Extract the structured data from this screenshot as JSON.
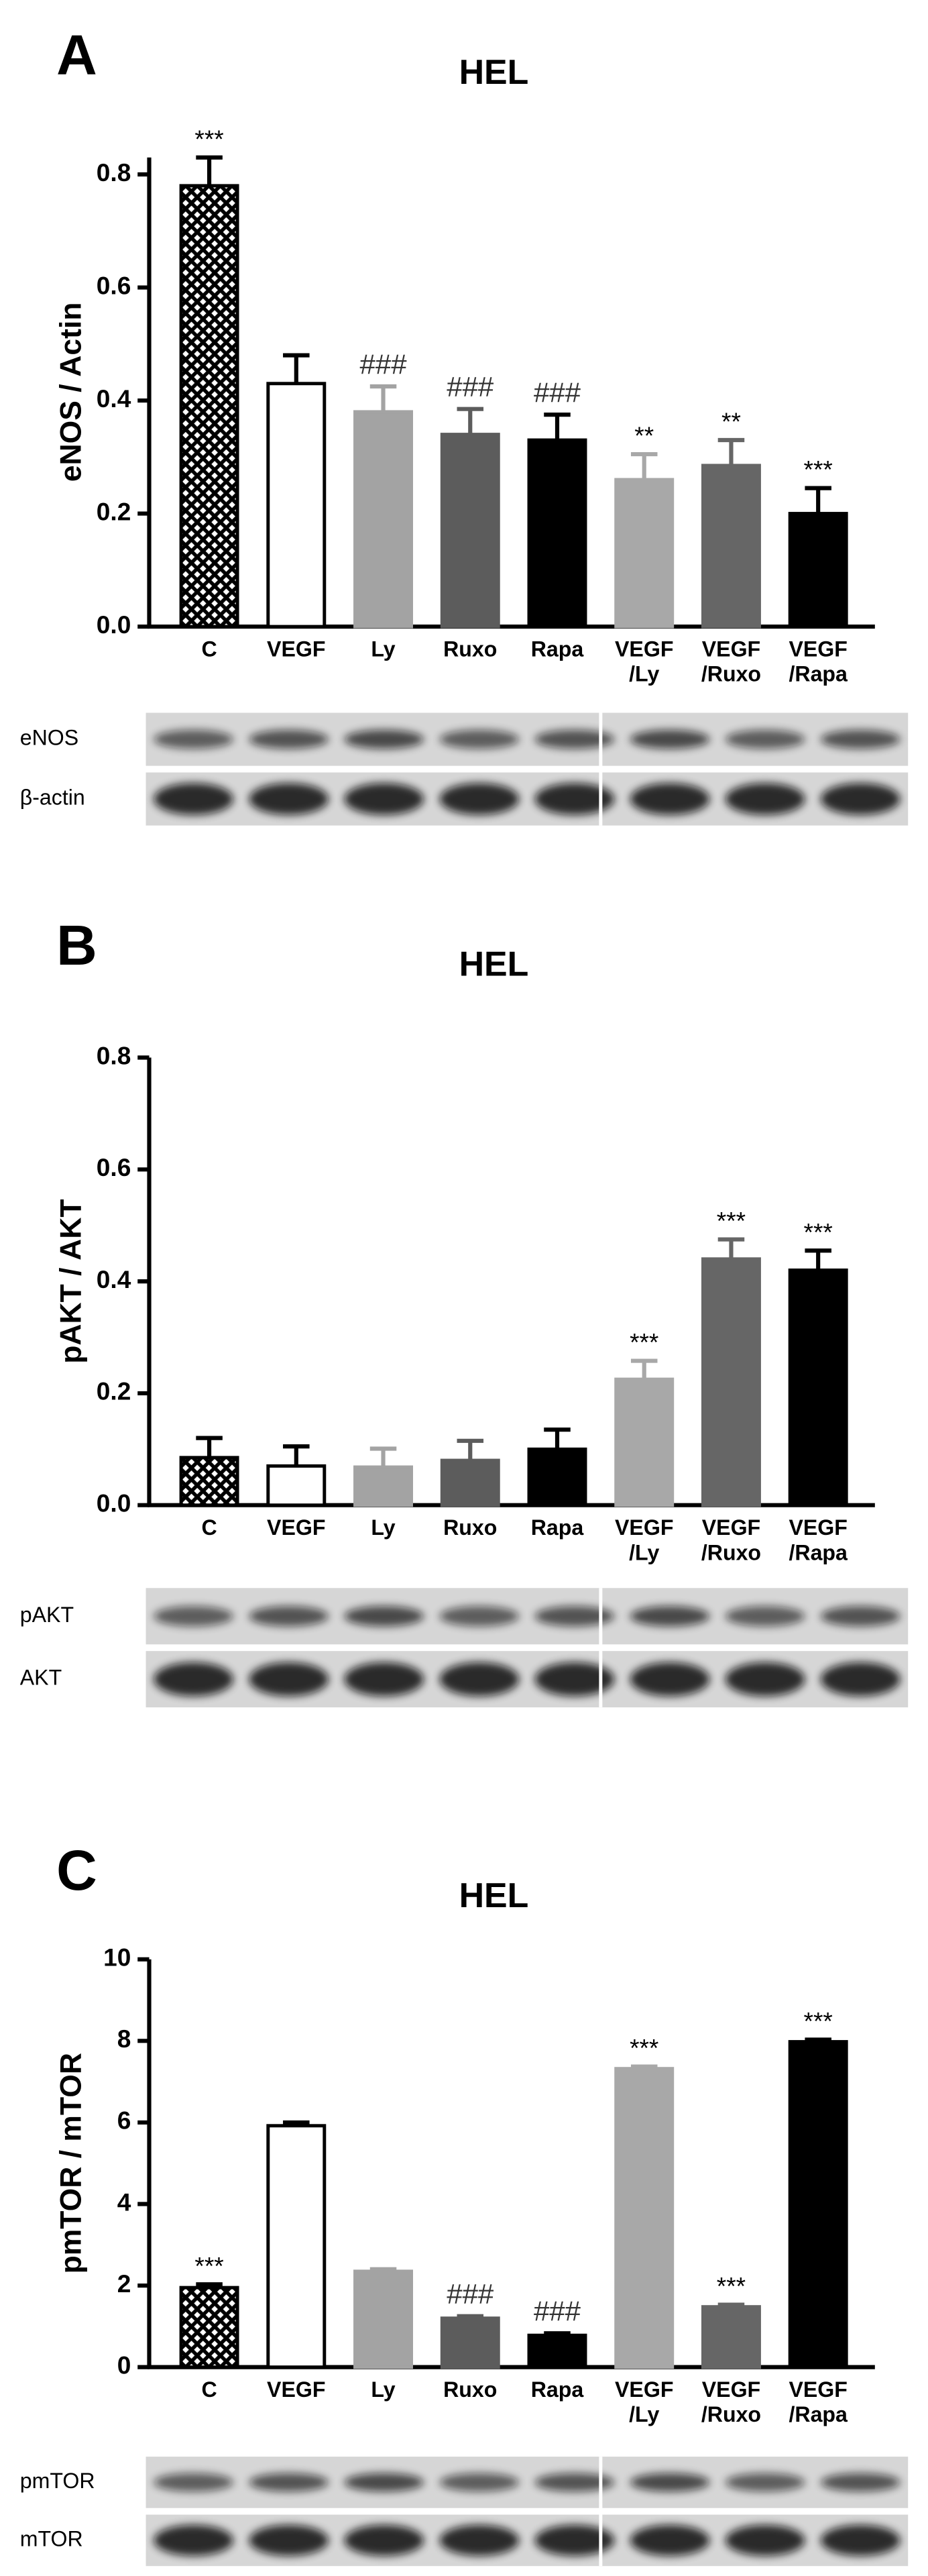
{
  "chart_data": [
    {
      "type": "bar",
      "panel": "A",
      "title": "HEL",
      "ylabel": "eNOS / Actin",
      "categories": [
        "C",
        "VEGF",
        "Ly",
        "Ruxo",
        "Rapa",
        "VEGF\n/Ly",
        "VEGF\n/Ruxo",
        "VEGF\n/Rapa"
      ],
      "values": [
        0.78,
        0.43,
        0.38,
        0.34,
        0.33,
        0.26,
        0.285,
        0.2
      ],
      "errors": [
        0.05,
        0.05,
        0.045,
        0.045,
        0.045,
        0.045,
        0.045,
        0.045
      ],
      "annotations": [
        "***",
        null,
        "###",
        "###",
        "###",
        "**",
        "**",
        "***"
      ],
      "bar_fills": [
        "crosshatch",
        "#ffffff",
        "#a3a3a3",
        "#5c5c5c",
        "#000000",
        "#a8a8a8",
        "#666666",
        "#000000"
      ],
      "ylim": [
        0,
        0.83
      ],
      "yticks": [
        {
          "value": 0,
          "label": "0.0"
        },
        0.2,
        0.4,
        0.6,
        0.8
      ],
      "blot_labels": [
        "eNOS",
        "β-actin"
      ]
    },
    {
      "type": "bar",
      "panel": "B",
      "title": "HEL",
      "ylabel": "pAKT / AKT",
      "categories": [
        "C",
        "VEGF",
        "Ly",
        "Ruxo",
        "Rapa",
        "VEGF\n/Ly",
        "VEGF\n/Ruxo",
        "VEGF\n/Rapa"
      ],
      "values": [
        0.085,
        0.07,
        0.068,
        0.08,
        0.1,
        0.225,
        0.44,
        0.42
      ],
      "errors": [
        0.035,
        0.035,
        0.033,
        0.035,
        0.035,
        0.033,
        0.035,
        0.035
      ],
      "annotations": [
        null,
        null,
        null,
        null,
        null,
        "***",
        "***",
        "***"
      ],
      "bar_fills": [
        "crosshatch",
        "#ffffff",
        "#a3a3a3",
        "#5c5c5c",
        "#000000",
        "#a8a8a8",
        "#666666",
        "#000000"
      ],
      "ylim": [
        0,
        0.8
      ],
      "yticks": [
        {
          "value": 0,
          "label": "0.0"
        },
        0.2,
        0.4,
        0.6,
        0.8
      ],
      "blot_labels": [
        "pAKT",
        "AKT"
      ]
    },
    {
      "type": "bar",
      "panel": "C",
      "title": "HEL",
      "ylabel": "pmTOR / mTOR",
      "categories": [
        "C",
        "VEGF",
        "Ly",
        "Ruxo",
        "Rapa",
        "VEGF\n/Ly",
        "VEGF\n/Ruxo",
        "VEGF\n/Rapa"
      ],
      "values": [
        1.95,
        5.92,
        2.35,
        1.2,
        0.78,
        7.32,
        1.48,
        7.98
      ],
      "errors": [
        0.08,
        0.08,
        0.05,
        0.05,
        0.05,
        0.05,
        0.05,
        0.05
      ],
      "annotations": [
        "***",
        null,
        null,
        "###",
        "###",
        "***",
        "***",
        "***"
      ],
      "bar_fills": [
        "crosshatch",
        "#ffffff",
        "#a3a3a3",
        "#5c5c5c",
        "#000000",
        "#a8a8a8",
        "#666666",
        "#000000"
      ],
      "ylim": [
        0,
        10
      ],
      "yticks": [
        0,
        2,
        4,
        6,
        8,
        10
      ],
      "blot_labels": [
        "pmTOR",
        "mTOR"
      ]
    }
  ]
}
